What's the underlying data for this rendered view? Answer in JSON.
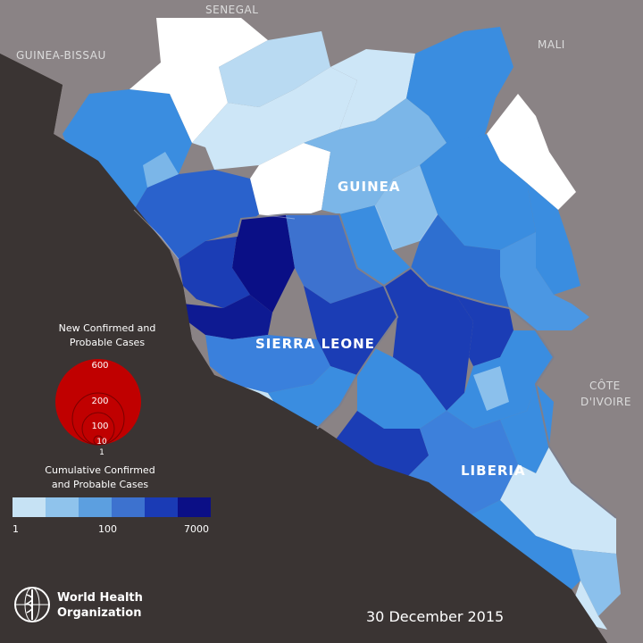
{
  "map": {
    "countries": {
      "senegal": "SENEGAL",
      "guinea_bissau": "GUINEA-BISSAU",
      "mali": "MALI",
      "cote_divoire_line1": "CÔTE",
      "cote_divoire_line2": "D'IVOIRE",
      "guinea": "GUINEA",
      "sierra_leone": "SIERRA LEONE",
      "liberia": "LIBERIA"
    },
    "legend": {
      "new_cases_title_line1": "New Confirmed and",
      "new_cases_title_line2": "Probable Cases",
      "bubble_values": [
        "600",
        "200",
        "100",
        "10",
        "1"
      ],
      "cumulative_title_line1": "Cumulative Confirmed",
      "cumulative_title_line2": "and Probable Cases",
      "scale_labels": [
        "1",
        "100",
        "7000"
      ],
      "scale_colors": [
        "#c6e2f4",
        "#8fc3ec",
        "#5c9fe0",
        "#3d72cf",
        "#1a3bb5",
        "#0b0f86"
      ]
    },
    "date": "30 December 2015",
    "organization_line1": "World Health",
    "organization_line2": "Organization",
    "colors": {
      "ocean": "#3a3433",
      "land_other": "#8a8385",
      "no_cases": "#ffffff",
      "bubble": "#c00000"
    }
  }
}
